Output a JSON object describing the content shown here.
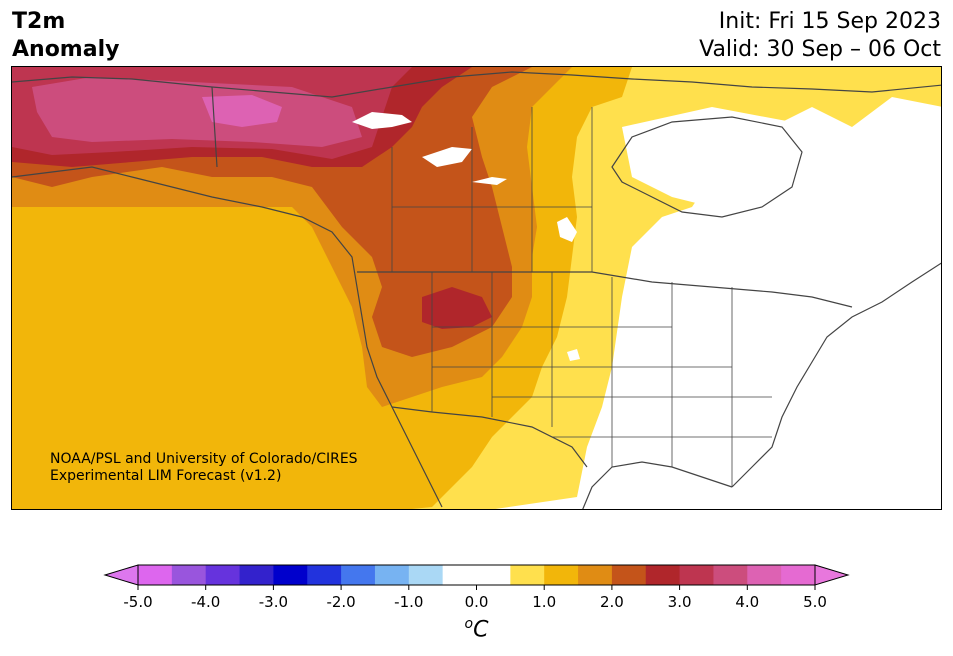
{
  "header": {
    "title_line1": "T2m",
    "title_line2": "Anomaly",
    "init_line": "Init: Fri 15 Sep 2023",
    "valid_line": "Valid: 30 Sep – 06 Oct"
  },
  "credit": {
    "line1": "NOAA/PSL and University of Colorado/CIRES",
    "line2": "Experimental LIM Forecast (v1.2)"
  },
  "colorbar": {
    "unit_sup": "o",
    "unit_main": "C",
    "min": -5.0,
    "max": 5.0,
    "bin_width": 0.5,
    "ticks": [
      "-5.0",
      "-4.0",
      "-3.0",
      "-2.0",
      "-1.0",
      "0.0",
      "1.0",
      "2.0",
      "3.0",
      "4.0",
      "5.0"
    ],
    "colors": [
      "#dd66ee",
      "#9955dd",
      "#6633dd",
      "#3322cc",
      "#0000cc",
      "#2233dd",
      "#4477ee",
      "#77b3f2",
      "#aad8f5",
      "#ffffff",
      "#ffffff",
      "#ffe04d",
      "#f2b60a",
      "#e08c14",
      "#c4541a",
      "#b0262b",
      "#be3550",
      "#cc4d7d",
      "#dd62b3",
      "#e56ad2"
    ],
    "extend_low_color": "#dd77ee",
    "extend_high_color": "#e877dd"
  },
  "map": {
    "region": "North America",
    "colors": {
      "land_neutral": "#ffffff",
      "ocean": "#ffffff",
      "border": "#444444"
    }
  }
}
